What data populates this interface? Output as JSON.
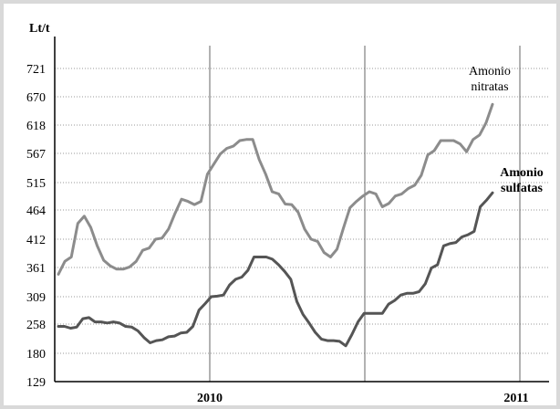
{
  "chart_data": {
    "type": "line",
    "ylabel": "Lt/t",
    "yticks": [
      129,
      180,
      258,
      309,
      361,
      412,
      464,
      515,
      567,
      618,
      670,
      721
    ],
    "x_axis_labels": [
      "2010",
      "2011"
    ],
    "grid": true,
    "colors": {
      "nitratas": "#8c8c8c",
      "sulfatas": "#555555",
      "grid_h": "#999999",
      "grid_v": "#666666"
    },
    "series": [
      {
        "name": "Amonio nitratas",
        "label_lines": [
          "Amonio",
          "nitratas"
        ],
        "values": [
          349,
          372,
          380,
          440,
          453,
          433,
          400,
          374,
          364,
          358,
          358,
          362,
          372,
          392,
          396,
          412,
          414,
          430,
          458,
          484,
          480,
          474,
          480,
          530,
          548,
          566,
          576,
          580,
          590,
          592,
          592,
          556,
          530,
          498,
          494,
          475,
          474,
          460,
          430,
          412,
          408,
          388,
          380,
          394,
          432,
          468,
          480,
          490,
          498,
          494,
          470,
          476,
          490,
          494,
          504,
          510,
          528,
          564,
          572,
          590,
          590,
          590,
          584,
          570,
          592,
          600,
          622,
          656
        ]
      },
      {
        "name": "Amonio sulfatas",
        "label_lines": [
          "Amonio",
          "sulfatas"
        ],
        "values": [
          252,
          252,
          247,
          250,
          268,
          270,
          262,
          262,
          260,
          262,
          260,
          252,
          250,
          240,
          222,
          208,
          214,
          216,
          224,
          226,
          234,
          236,
          252,
          284,
          296,
          309,
          310,
          312,
          330,
          340,
          344,
          356,
          380,
          380,
          380,
          376,
          366,
          354,
          340,
          300,
          276,
          260,
          236,
          218,
          214,
          214,
          212,
          200,
          230,
          262,
          278,
          278,
          278,
          278,
          295,
          302,
          312,
          315,
          315,
          318,
          332,
          360,
          366,
          400,
          404,
          406,
          416,
          420,
          426,
          470,
          482,
          496
        ]
      }
    ]
  }
}
